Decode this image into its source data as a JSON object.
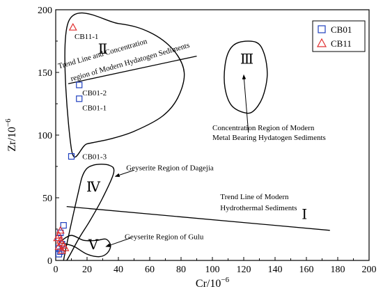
{
  "chart_data": {
    "type": "scatter",
    "xlabel": "Cr/10",
    "xlabel_sup": "−6",
    "ylabel": "Zr/10",
    "ylabel_sup": "−6",
    "xlim": [
      0,
      200
    ],
    "ylim": [
      0,
      200
    ],
    "xticks": [
      "0",
      "20",
      "40",
      "60",
      "80",
      "100",
      "120",
      "140",
      "160",
      "180",
      "200"
    ],
    "yticks": [
      "0",
      "50",
      "100",
      "150",
      "200"
    ],
    "grid": false,
    "legend_position": "top-right",
    "colors": {
      "CB01": "#1f3fbf",
      "CB11": "#e03030"
    },
    "series": [
      {
        "name": "CB01",
        "marker": "square",
        "points": [
          {
            "x": 10,
            "y": 83
          },
          {
            "x": 15,
            "y": 129
          },
          {
            "x": 15,
            "y": 140
          },
          {
            "x": 5,
            "y": 28
          },
          {
            "x": 3,
            "y": 22
          },
          {
            "x": 2,
            "y": 18
          },
          {
            "x": 4,
            "y": 13
          },
          {
            "x": 2,
            "y": 10
          },
          {
            "x": 3,
            "y": 7
          },
          {
            "x": 2,
            "y": 5
          }
        ]
      },
      {
        "name": "CB11",
        "marker": "triangle",
        "points": [
          {
            "x": 11,
            "y": 186
          },
          {
            "x": 3,
            "y": 24
          },
          {
            "x": 2,
            "y": 20
          },
          {
            "x": 1,
            "y": 18
          },
          {
            "x": 3,
            "y": 16
          },
          {
            "x": 4,
            "y": 14
          },
          {
            "x": 5,
            "y": 12
          },
          {
            "x": 2,
            "y": 11
          },
          {
            "x": 6,
            "y": 10
          },
          {
            "x": 4,
            "y": 8
          }
        ]
      }
    ],
    "point_labels": [
      {
        "text": "CB11-1",
        "x": 12,
        "y": 179
      },
      {
        "text": "CB01-2",
        "x": 17,
        "y": 134
      },
      {
        "text": "CB01-1",
        "x": 17,
        "y": 122
      },
      {
        "text": "CB01-3",
        "x": 17,
        "y": 83
      }
    ],
    "trend_lines": [
      {
        "points": [
          [
            8,
            141
          ],
          [
            90,
            163
          ]
        ]
      },
      {
        "points": [
          [
            7,
            43
          ],
          [
            175,
            24
          ]
        ]
      }
    ],
    "regions": [
      {
        "label": "Ⅱ",
        "label_at": [
          30,
          165
        ],
        "path": [
          [
            8,
            190
          ],
          [
            40,
            189
          ],
          [
            60,
            182
          ],
          [
            75,
            168
          ],
          [
            82,
            150
          ],
          [
            78,
            130
          ],
          [
            68,
            115
          ],
          [
            50,
            103
          ],
          [
            35,
            97
          ],
          [
            20,
            93
          ],
          [
            10,
            89
          ]
        ]
      },
      {
        "label": "Ⅲ",
        "label_at": [
          122,
          157
        ],
        "path": [
          [
            117,
            174
          ],
          [
            128,
            174
          ],
          [
            133,
            165
          ],
          [
            135,
            148
          ],
          [
            132,
            130
          ],
          [
            126,
            119
          ],
          [
            120,
            118
          ],
          [
            112,
            124
          ],
          [
            108,
            138
          ],
          [
            108,
            155
          ],
          [
            111,
            168
          ]
        ]
      },
      {
        "label": "Ⅳ",
        "label_at": [
          24,
          55
        ],
        "path": [
          [
            5,
            0
          ],
          [
            14,
            52
          ],
          [
            18,
            70
          ],
          [
            24,
            76
          ],
          [
            34,
            76
          ],
          [
            37,
            70
          ],
          [
            30,
            50
          ],
          [
            22,
            32
          ],
          [
            15,
            18
          ],
          [
            7,
            0
          ]
        ]
      },
      {
        "label": "Ⅴ",
        "label_at": [
          24,
          9
        ],
        "path": [
          [
            4,
            16
          ],
          [
            10,
            20
          ],
          [
            18,
            16
          ],
          [
            26,
            16
          ],
          [
            32,
            17
          ],
          [
            35,
            12
          ],
          [
            33,
            6
          ],
          [
            28,
            3
          ],
          [
            20,
            5
          ],
          [
            12,
            11
          ],
          [
            7,
            13
          ],
          [
            3,
            14
          ]
        ]
      }
    ],
    "texts": [
      {
        "text": "Trend Line and Concentration",
        "x": 2,
        "y": 153,
        "angle": -16
      },
      {
        "text": "region of Modern Hydatogen Sediments",
        "x": 10,
        "y": 143,
        "angle": -16
      },
      {
        "text": "Concentration Region of Modern",
        "x": 100,
        "y": 104
      },
      {
        "text": "Metal Bearing Hydatogen Sediments",
        "x": 100,
        "y": 96
      },
      {
        "text": "Geyserite Region of Dagejia",
        "x": 45,
        "y": 72
      },
      {
        "text": "Trend Line of Modern",
        "x": 105,
        "y": 49
      },
      {
        "text": "Hydrothermal Sediments",
        "x": 105,
        "y": 40
      },
      {
        "text": "Ⅰ",
        "x": 157,
        "y": 33,
        "roman": true
      },
      {
        "text": "Geyserite Region of Gulu",
        "x": 44,
        "y": 17
      }
    ],
    "arrows": [
      {
        "from": [
          50,
          72
        ],
        "to": [
          38,
          67
        ]
      },
      {
        "from": [
          123,
          102
        ],
        "to": [
          120,
          148
        ]
      },
      {
        "from": [
          48,
          18
        ],
        "to": [
          32,
          11
        ]
      }
    ]
  }
}
